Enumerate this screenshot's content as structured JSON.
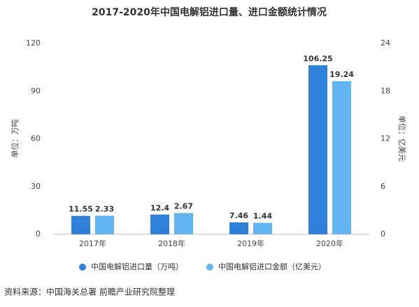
{
  "chart_data": {
    "type": "bar",
    "title": "2017-2020年中国电解铝进口量、进口金额统计情况",
    "categories": [
      "2017年",
      "2018年",
      "2019年",
      "2020年"
    ],
    "series": [
      {
        "name": "中国电解铝进口量（万吨）",
        "color": "#2f80d8",
        "values": [
          11.55,
          12.4,
          7.46,
          106.25
        ]
      },
      {
        "name": "中国电解铝进口金额（亿美元）",
        "color": "#62b5f0",
        "values": [
          2.33,
          2.67,
          1.44,
          19.24
        ],
        "axis": "y2"
      }
    ],
    "ylabel": "单位：万吨",
    "y2label": "单位：亿美元",
    "ylim": [
      0,
      120
    ],
    "yticks": [
      0,
      30,
      60,
      90,
      120
    ],
    "y2lim": [
      0,
      24
    ],
    "y2ticks": [
      0,
      6,
      12,
      18,
      24
    ],
    "grid": false,
    "legend": "bottom",
    "source": "资料来源：中国海关总署 前瞻产业研究院整理"
  }
}
